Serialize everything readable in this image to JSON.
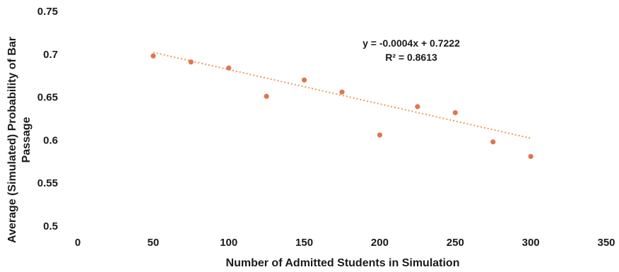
{
  "chart_data": {
    "type": "scatter",
    "xlabel": "Number of Admitted Students in Simulation",
    "ylabel_lines": [
      "Average (Simulated) Probability of Bar",
      "Passage"
    ],
    "xlim": [
      0,
      350
    ],
    "ylim": [
      0.5,
      0.75
    ],
    "x_ticks": [
      0,
      50,
      100,
      150,
      200,
      250,
      300,
      350
    ],
    "y_ticks": [
      0.5,
      0.55,
      0.6,
      0.65,
      0.7,
      0.75
    ],
    "x_tick_labels": [
      "0",
      "50",
      "100",
      "150",
      "200",
      "250",
      "300",
      "350"
    ],
    "y_tick_labels": [
      "0.5",
      "0.55",
      "0.6",
      "0.65",
      "0.7",
      "0.75"
    ],
    "grid": false,
    "marker_color": "#e0764f",
    "trendline_color": "#e89a5a",
    "points": [
      {
        "x": 50,
        "y": 0.698
      },
      {
        "x": 75,
        "y": 0.691
      },
      {
        "x": 100,
        "y": 0.684
      },
      {
        "x": 125,
        "y": 0.651
      },
      {
        "x": 150,
        "y": 0.67
      },
      {
        "x": 175,
        "y": 0.656
      },
      {
        "x": 200,
        "y": 0.606
      },
      {
        "x": 225,
        "y": 0.639
      },
      {
        "x": 250,
        "y": 0.632
      },
      {
        "x": 275,
        "y": 0.598
      },
      {
        "x": 300,
        "y": 0.581
      }
    ],
    "trendline": {
      "type": "linear",
      "slope": -0.0004,
      "intercept": 0.7222,
      "x_range": [
        50,
        300
      ],
      "equation_label": "y = -0.0004x + 0.7222",
      "r2_label": "R² = 0.8613"
    }
  }
}
